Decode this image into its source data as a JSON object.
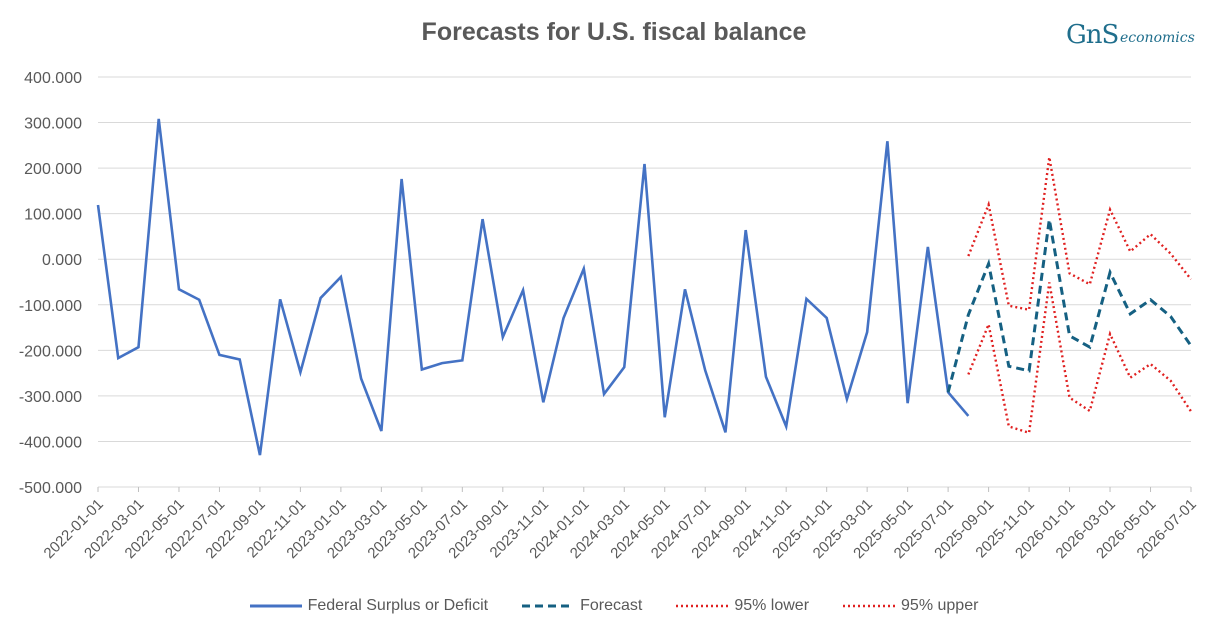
{
  "chart_data": {
    "type": "line",
    "title": "Forecasts for U.S. fiscal balance",
    "xlabel": "",
    "ylabel": "",
    "ylim": [
      -500,
      400
    ],
    "y_ticks": [
      "400.000",
      "300.000",
      "200.000",
      "100.000",
      "0.000",
      "-100.000",
      "-200.000",
      "-300.000",
      "-400.000",
      "-500.000"
    ],
    "y_tick_values": [
      400,
      300,
      200,
      100,
      0,
      -100,
      -200,
      -300,
      -400,
      -500
    ],
    "x_tick_labels": [
      "2022-01-01",
      "2022-03-01",
      "2022-05-01",
      "2022-07-01",
      "2022-09-01",
      "2022-11-01",
      "2023-01-01",
      "2023-03-01",
      "2023-05-01",
      "2023-07-01",
      "2023-09-01",
      "2023-11-01",
      "2024-01-01",
      "2024-03-01",
      "2024-05-01",
      "2024-07-01",
      "2024-09-01",
      "2024-11-01",
      "2025-01-01",
      "2025-03-01",
      "2025-05-01",
      "2025-07-01",
      "2025-09-01",
      "2025-11-01",
      "2026-01-01",
      "2026-03-01",
      "2026-05-01",
      "2026-07-01"
    ],
    "grid": "horizontal",
    "legend_position": "bottom",
    "series": [
      {
        "name": "Federal Surplus or Deficit",
        "color": "#4472c4",
        "style": "solid",
        "start_index": 0,
        "values": [
          119,
          -217,
          -193,
          308,
          -66,
          -89,
          -210,
          -220,
          -430,
          -88,
          -248,
          -85,
          -39,
          -262,
          -377,
          176,
          -242,
          -228,
          -222,
          88,
          -171,
          -68,
          -314,
          -129,
          -21,
          -296,
          -237,
          209,
          -347,
          -66,
          -244,
          -380,
          64,
          -258,
          -367,
          -87,
          -129,
          -307,
          -160,
          259,
          -316,
          27,
          -292,
          -344
        ]
      },
      {
        "name": "Forecast",
        "color": "#156082",
        "style": "dashed",
        "start_index": 42,
        "values": [
          -292,
          -122,
          -10,
          -235,
          -245,
          87,
          -168,
          -193,
          -29,
          -120,
          -89,
          -126,
          -190
        ]
      },
      {
        "name": "95% lower",
        "color": "#e02020",
        "style": "dotted",
        "start_index": 43,
        "values": [
          -253,
          -143,
          -367,
          -381,
          -51,
          -304,
          -333,
          -164,
          -260,
          -230,
          -267,
          -334
        ]
      },
      {
        "name": "95% upper",
        "color": "#e02020",
        "style": "dotted",
        "start_index": 43,
        "values": [
          7,
          120,
          -102,
          -111,
          224,
          -31,
          -55,
          109,
          17,
          55,
          12,
          -44
        ]
      }
    ]
  },
  "logo": {
    "mark": "GnS",
    "text": "economics"
  }
}
